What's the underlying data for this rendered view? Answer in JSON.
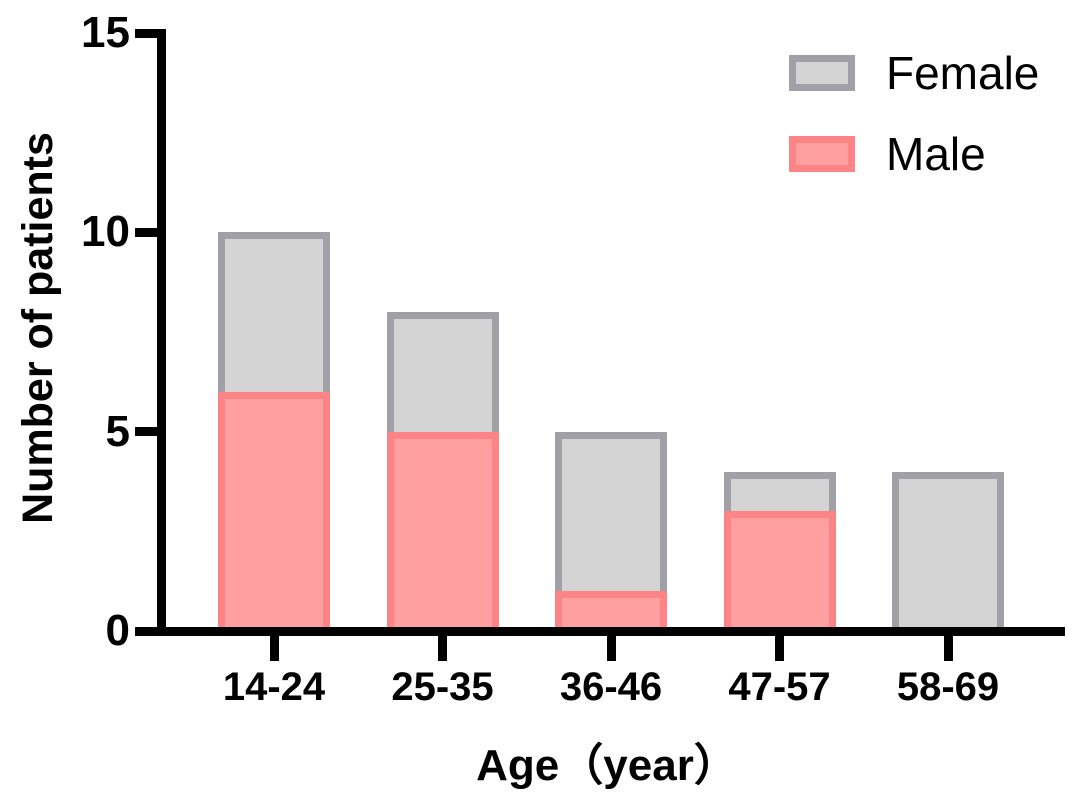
{
  "chart_data": {
    "type": "bar",
    "stacked": true,
    "categories": [
      "14-24",
      "25-35",
      "36-46",
      "47-57",
      "58-69"
    ],
    "series": [
      {
        "name": "Male",
        "values": [
          6,
          5,
          1,
          3,
          0
        ],
        "fill": "#FF9FA0",
        "border": "#FC8486"
      },
      {
        "name": "Female",
        "values": [
          4,
          3,
          4,
          1,
          4
        ],
        "fill": "#D4D4D4",
        "border": "#A0A0A6"
      }
    ],
    "totals": [
      10,
      8,
      5,
      4,
      4
    ],
    "xlabel": "Age（year）",
    "ylabel": "Number of patients",
    "ylim": [
      0,
      15
    ],
    "yticks": [
      0,
      5,
      10,
      15
    ],
    "grid": false,
    "legend": {
      "position": "top-right",
      "order": [
        "Female",
        "Male"
      ]
    },
    "axis_color": "#000000"
  }
}
